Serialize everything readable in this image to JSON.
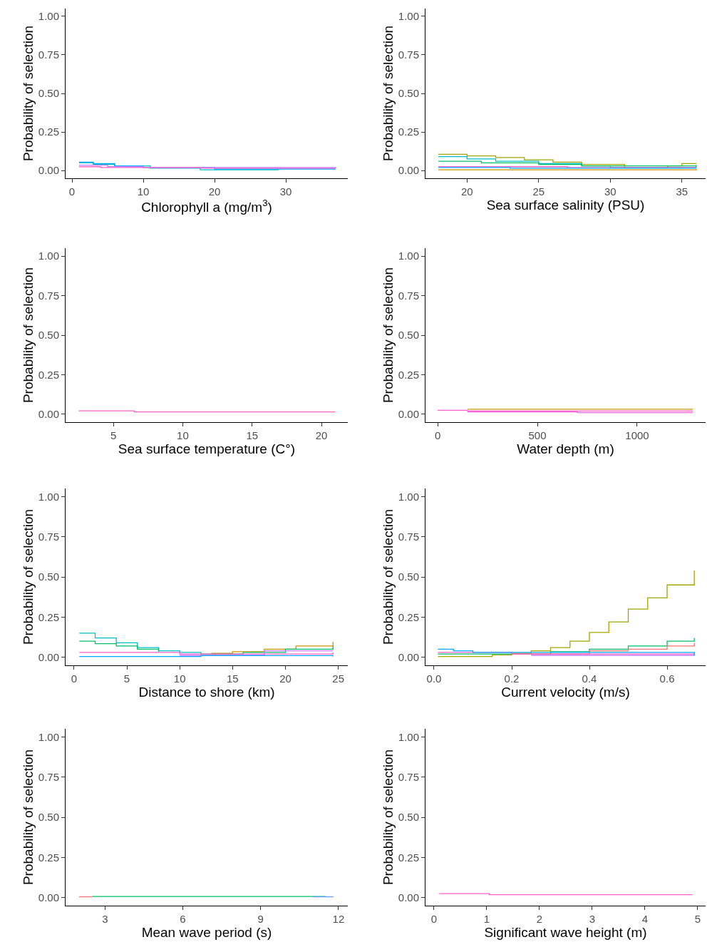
{
  "chart_data": [
    {
      "type": "step",
      "xlabel": "Chlorophyll a (mg/m$^{3}$)",
      "ylabel": "Probability of selection",
      "xlim": [
        -0.9,
        38.7
      ],
      "xticks": [
        0,
        10,
        20,
        30
      ],
      "ylim": [
        -0.05,
        1.05
      ],
      "yticks": [
        {
          "value": 0,
          "label": "0.00"
        },
        {
          "value": 0.25,
          "label": "0.25"
        },
        {
          "value": 0.5,
          "label": "0.50"
        },
        {
          "value": 0.75,
          "label": "0.75"
        },
        {
          "value": 1,
          "label": "1.00"
        }
      ],
      "series": [
        {
          "color": "#00bfc4",
          "x": [
            1,
            3,
            6,
            11,
            18,
            29
          ],
          "values": [
            0.05,
            0.04,
            0.03,
            0.015,
            0.005,
            0.005
          ]
        },
        {
          "color": "#00a9ff",
          "x": [
            1,
            3,
            6,
            10,
            20,
            25,
            37
          ],
          "values": [
            0.055,
            0.045,
            0.03,
            0.02,
            0.01,
            0.01,
            0.01
          ]
        },
        {
          "color": "#c77cff",
          "x": [
            1,
            5,
            10,
            37
          ],
          "values": [
            0.035,
            0.025,
            0.02,
            0.015
          ]
        },
        {
          "color": "#ff61cc",
          "x": [
            1,
            4,
            8,
            18,
            37
          ],
          "values": [
            0.025,
            0.02,
            0.02,
            0.015,
            0.015
          ]
        }
      ]
    },
    {
      "type": "step",
      "xlabel": "Sea surface salinity (PSU)",
      "ylabel": "Probability of selection",
      "xlim": [
        17.1,
        36.65
      ],
      "xticks": [
        20,
        25,
        30,
        35
      ],
      "ylim": [
        -0.05,
        1.05
      ],
      "yticks": [
        {
          "value": 0,
          "label": "0.00"
        },
        {
          "value": 0.25,
          "label": "0.25"
        },
        {
          "value": 0.5,
          "label": "0.50"
        },
        {
          "value": 0.75,
          "label": "0.75"
        },
        {
          "value": 1,
          "label": "1.00"
        }
      ],
      "series": [
        {
          "color": "#a3a500",
          "x": [
            18,
            20,
            22,
            24,
            26,
            28,
            31,
            34,
            35,
            36
          ],
          "values": [
            0.105,
            0.095,
            0.085,
            0.07,
            0.055,
            0.04,
            0.02,
            0.03,
            0.045,
            0.045
          ]
        },
        {
          "color": "#00bfc4",
          "x": [
            18,
            20,
            22,
            25,
            28,
            30,
            36
          ],
          "values": [
            0.09,
            0.075,
            0.06,
            0.045,
            0.03,
            0.02,
            0.03
          ]
        },
        {
          "color": "#00be67",
          "x": [
            18,
            21,
            25,
            28,
            34,
            36
          ],
          "values": [
            0.06,
            0.05,
            0.04,
            0.03,
            0.03,
            0.035
          ]
        },
        {
          "color": "#ff61cc",
          "x": [
            18,
            27,
            36
          ],
          "values": [
            0.025,
            0.02,
            0.02
          ]
        },
        {
          "color": "#00a9ff",
          "x": [
            18,
            23,
            36
          ],
          "values": [
            0.02,
            0.015,
            0.015
          ]
        },
        {
          "color": "#cd9600",
          "x": [
            18,
            24,
            36
          ],
          "values": [
            0.005,
            0.005,
            0.01
          ]
        }
      ]
    },
    {
      "type": "step",
      "xlabel": "Sea surface temperature (C°)",
      "ylabel": "Probability of selection",
      "xlim": [
        1.55,
        21.9
      ],
      "xticks": [
        5,
        10,
        15,
        20
      ],
      "ylim": [
        -0.05,
        1.05
      ],
      "yticks": [
        {
          "value": 0,
          "label": "0.00"
        },
        {
          "value": 0.25,
          "label": "0.25"
        },
        {
          "value": 0.5,
          "label": "0.50"
        },
        {
          "value": 0.75,
          "label": "0.75"
        },
        {
          "value": 1,
          "label": "1.00"
        }
      ],
      "series": [
        {
          "color": "#ff61cc",
          "x": [
            2.5,
            6.5,
            21
          ],
          "values": [
            0.022,
            0.015,
            0.015
          ]
        }
      ]
    },
    {
      "type": "step",
      "xlabel": "Water depth (m)",
      "ylabel": "Probability of selection",
      "xlim": [
        -61,
        1343
      ],
      "xticks": [
        0,
        500,
        1000
      ],
      "ylim": [
        -0.05,
        1.05
      ],
      "yticks": [
        {
          "value": 0,
          "label": "0.00"
        },
        {
          "value": 0.25,
          "label": "0.25"
        },
        {
          "value": 0.5,
          "label": "0.50"
        },
        {
          "value": 0.75,
          "label": "0.75"
        },
        {
          "value": 1,
          "label": "1.00"
        }
      ],
      "series": [
        {
          "color": "#cd9600",
          "x": [
            150,
            1280
          ],
          "values": [
            0.032,
            0.032
          ]
        },
        {
          "color": "#ff61cc",
          "x": [
            0,
            150,
            1280
          ],
          "values": [
            0.025,
            0.02,
            0.02
          ]
        },
        {
          "color": "#f564e3",
          "x": [
            150,
            700,
            1280
          ],
          "values": [
            0.015,
            0.01,
            0.01
          ]
        }
      ]
    },
    {
      "type": "step",
      "xlabel": "Distance to shore (km)",
      "ylabel": "Probability of selection",
      "xlim": [
        -0.8,
        25.9
      ],
      "xticks": [
        0,
        5,
        10,
        15,
        20,
        25
      ],
      "ylim": [
        -0.05,
        1.05
      ],
      "yticks": [
        {
          "value": 0,
          "label": "0.00"
        },
        {
          "value": 0.25,
          "label": "0.25"
        },
        {
          "value": 0.5,
          "label": "0.50"
        },
        {
          "value": 0.75,
          "label": "0.75"
        },
        {
          "value": 1,
          "label": "1.00"
        }
      ],
      "series": [
        {
          "color": "#00bfc4",
          "x": [
            0.5,
            2,
            4,
            6,
            8,
            10,
            12
          ],
          "values": [
            0.15,
            0.12,
            0.09,
            0.06,
            0.04,
            0.03,
            0.02
          ]
        },
        {
          "color": "#00be67",
          "x": [
            0.5,
            2,
            4,
            6,
            8
          ],
          "values": [
            0.1,
            0.085,
            0.07,
            0.05,
            0.035
          ]
        },
        {
          "color": "#cd9600",
          "x": [
            13,
            15,
            18,
            21,
            24.5
          ],
          "values": [
            0.025,
            0.035,
            0.05,
            0.07,
            0.095
          ]
        },
        {
          "color": "#00be67",
          "x": [
            12,
            16,
            20,
            24.5
          ],
          "values": [
            0.02,
            0.03,
            0.05,
            0.07
          ]
        },
        {
          "color": "#c77cff",
          "x": [
            10,
            18,
            24.5
          ],
          "values": [
            0.012,
            0.04,
            0.04
          ]
        },
        {
          "color": "#ff61cc",
          "x": [
            0.5,
            10,
            24.5
          ],
          "values": [
            0.03,
            0.02,
            0.03
          ]
        },
        {
          "color": "#00a9ff",
          "x": [
            0.5,
            12,
            24.5
          ],
          "values": [
            0.005,
            0.01,
            0.005
          ]
        }
      ]
    },
    {
      "type": "step",
      "xlabel": "Current velocity (m/s)",
      "ylabel": "Probability of selection",
      "xlim": [
        -0.022,
        0.699
      ],
      "xticks": [
        {
          "value": 0,
          "label": "0.0"
        },
        0.2,
        0.4,
        0.6
      ],
      "ylim": [
        -0.05,
        1.05
      ],
      "yticks": [
        {
          "value": 0,
          "label": "0.00"
        },
        {
          "value": 0.25,
          "label": "0.25"
        },
        {
          "value": 0.5,
          "label": "0.50"
        },
        {
          "value": 0.75,
          "label": "0.75"
        },
        {
          "value": 1,
          "label": "1.00"
        }
      ],
      "series": [
        {
          "color": "#a3a500",
          "x": [
            0.01,
            0.1,
            0.15,
            0.2,
            0.25,
            0.3,
            0.35,
            0.4,
            0.45,
            0.5,
            0.55,
            0.6,
            0.67
          ],
          "values": [
            0.005,
            0.005,
            0.015,
            0.025,
            0.04,
            0.06,
            0.1,
            0.155,
            0.22,
            0.3,
            0.37,
            0.45,
            0.54
          ]
        },
        {
          "color": "#00be67",
          "x": [
            0.01,
            0.2,
            0.3,
            0.4,
            0.5,
            0.6,
            0.67
          ],
          "values": [
            0.02,
            0.02,
            0.035,
            0.05,
            0.07,
            0.1,
            0.12
          ]
        },
        {
          "color": "#f8766d",
          "x": [
            0.2,
            0.4,
            0.5,
            0.6,
            0.67
          ],
          "values": [
            0.02,
            0.04,
            0.05,
            0.07,
            0.09
          ]
        },
        {
          "color": "#c77cff",
          "x": [
            0.25,
            0.67
          ],
          "values": [
            0.012,
            0.012
          ]
        },
        {
          "color": "#ff61cc",
          "x": [
            0.01,
            0.2,
            0.4,
            0.67
          ],
          "values": [
            0.03,
            0.02,
            0.02,
            0.03
          ]
        },
        {
          "color": "#00a9ff",
          "x": [
            0.01,
            0.05,
            0.1,
            0.67
          ],
          "values": [
            0.05,
            0.04,
            0.03,
            0.01
          ]
        }
      ]
    },
    {
      "type": "step",
      "xlabel": "Mean wave period (s)",
      "ylabel": "Probability of selection",
      "xlim": [
        1.48,
        12.36
      ],
      "xticks": [
        3,
        6,
        9,
        12
      ],
      "ylim": [
        -0.05,
        1.05
      ],
      "yticks": [
        {
          "value": 0,
          "label": "0.00"
        },
        {
          "value": 0.25,
          "label": "0.25"
        },
        {
          "value": 0.5,
          "label": "0.50"
        },
        {
          "value": 0.75,
          "label": "0.75"
        },
        {
          "value": 1,
          "label": "1.00"
        }
      ],
      "series": [
        {
          "color": "#f8766d",
          "x": [
            2,
            2.5
          ],
          "values": [
            0.005,
            0.005
          ]
        },
        {
          "color": "#00be67",
          "x": [
            2.5,
            11.5
          ],
          "values": [
            0.007,
            0.007
          ]
        },
        {
          "color": "#619cff",
          "x": [
            11,
            11.8
          ],
          "values": [
            0.005,
            0.005
          ]
        }
      ]
    },
    {
      "type": "step",
      "xlabel": "Significant wave height (m)",
      "ylabel": "Probability of selection",
      "xlim": [
        -0.16,
        5.15
      ],
      "xticks": [
        0,
        1,
        2,
        3,
        4,
        5
      ],
      "ylim": [
        -0.05,
        1.05
      ],
      "yticks": [
        {
          "value": 0,
          "label": "0.00"
        },
        {
          "value": 0.25,
          "label": "0.25"
        },
        {
          "value": 0.5,
          "label": "0.50"
        },
        {
          "value": 0.75,
          "label": "0.75"
        },
        {
          "value": 1,
          "label": "1.00"
        }
      ],
      "series": [
        {
          "color": "#ff61cc",
          "x": [
            0.1,
            1.05,
            4.9
          ],
          "values": [
            0.025,
            0.018,
            0.018
          ]
        }
      ]
    }
  ]
}
